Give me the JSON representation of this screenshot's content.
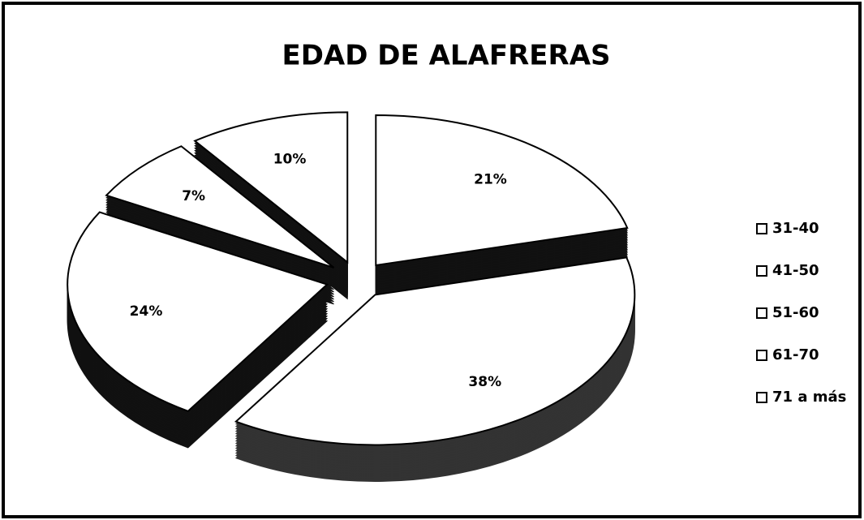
{
  "chart_data": {
    "type": "pie",
    "title": "EDAD DE ALAFRERAS",
    "categories": [
      "31-40",
      "41-50",
      "51-60",
      "61-70",
      "71 a más"
    ],
    "values": [
      21,
      38,
      24,
      7,
      10
    ],
    "value_labels": [
      "21%",
      "38%",
      "24%",
      "7%",
      "10%"
    ],
    "colors": [
      "#ffffff",
      "#ffffff",
      "#ffffff",
      "#ffffff",
      "#ffffff"
    ],
    "side_colors": [
      "#111111",
      "#333333",
      "#111111",
      "#111111",
      "#111111"
    ],
    "legend": "right"
  }
}
